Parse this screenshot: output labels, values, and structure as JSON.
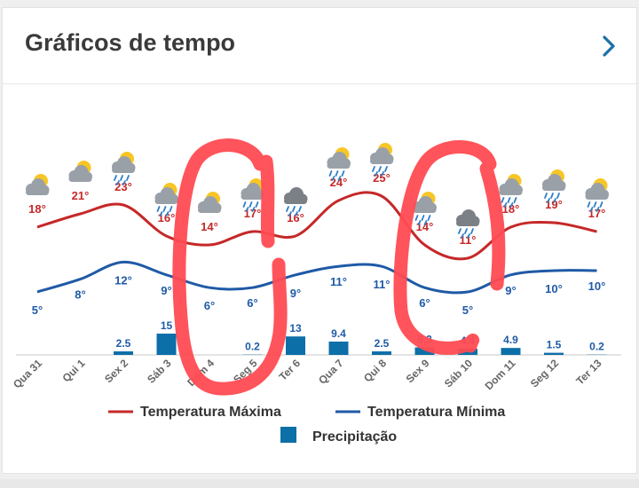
{
  "header": {
    "title": "Gráficos de tempo"
  },
  "colors": {
    "max": "#c62828",
    "min": "#1f5aa6",
    "precip": "#0d6fa8",
    "scribble": "#ff4b52"
  },
  "chart_data": {
    "type": "line",
    "categories": [
      "Qua 31",
      "Qui 1",
      "Sex 2",
      "Sáb 3",
      "Dom 4",
      "Seg 5",
      "Ter 6",
      "Qua 7",
      "Qui 8",
      "Sex 9",
      "Sáb 10",
      "Dom 11",
      "Seg 12",
      "Ter 13"
    ],
    "series": [
      {
        "name": "Temperatura Máxima",
        "values": [
          18,
          21,
          23,
          16,
          14,
          17,
          16,
          24,
          25,
          14,
          11,
          18,
          19,
          17
        ],
        "labels": [
          "18°",
          "21°",
          "23°",
          "16°",
          "14°",
          "17°",
          "16°",
          "24°",
          "25°",
          "14°",
          "11°",
          "18°",
          "19°",
          "17°"
        ]
      },
      {
        "name": "Temperatura Mínima",
        "values": [
          5,
          8,
          12,
          9,
          6,
          6,
          9,
          11,
          11,
          6,
          5,
          9,
          10,
          10
        ],
        "labels": [
          "5°",
          "8°",
          "12°",
          "9°",
          "6°",
          "6°",
          "9°",
          "11°",
          "11°",
          "6°",
          "5°",
          "9°",
          "10°",
          "10°"
        ]
      },
      {
        "name": "Precipitação",
        "type": "bar",
        "values": [
          0,
          0,
          2.5,
          15,
          0,
          0.2,
          13,
          9.4,
          2.5,
          5.3,
          4.4,
          4.9,
          1.5,
          0.2
        ],
        "labels": [
          "",
          "",
          "2.5",
          "15",
          "",
          "0.2",
          "13",
          "9.4",
          "2.5",
          "5.3",
          "4.4",
          "4.9",
          "1.5",
          "0.2"
        ]
      }
    ],
    "icons": [
      "cloud-sun-icon",
      "cloud-sun-icon",
      "cloud-sun-rain-icon",
      "cloud-sun-rain-icon",
      "cloud-sun-icon",
      "cloud-sun-rain-icon",
      "cloud-rain-icon",
      "cloud-sun-rain-icon",
      "cloud-sun-rain-icon",
      "cloud-sun-rain-icon",
      "cloud-rain-icon",
      "cloud-sun-rain-icon",
      "cloud-sun-rain-icon",
      "cloud-sun-rain-icon"
    ],
    "legend": [
      {
        "label": "Temperatura Máxima",
        "kind": "line"
      },
      {
        "label": "Temperatura Mínima",
        "kind": "line"
      },
      {
        "label": "Precipitação",
        "kind": "bar"
      }
    ],
    "legend_position": "bottom"
  }
}
